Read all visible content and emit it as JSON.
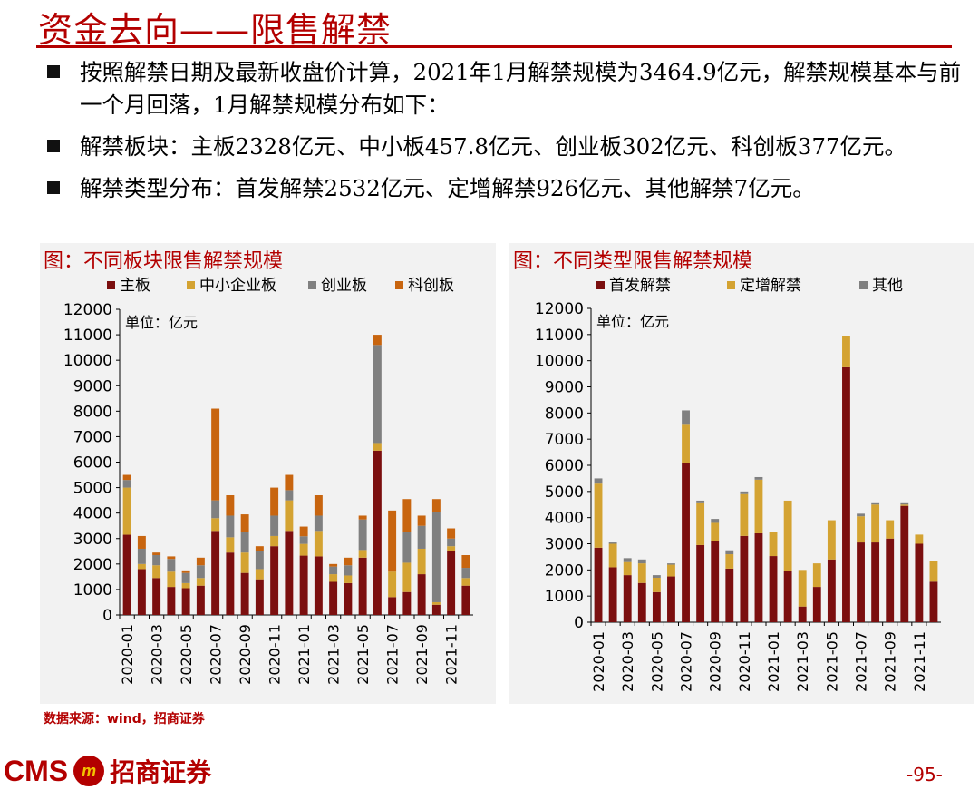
{
  "page": {
    "title": "资金去向——限售解禁",
    "bullets": [
      "按照解禁日期及最新收盘价计算，2021年1月解禁规模为3464.9亿元，解禁规模基本与前一个月回落，1月解禁规模分布如下：",
      "解禁板块：主板2328亿元、中小板457.8亿元、创业板302亿元、科创板377亿元。",
      "解禁类型分布：首发解禁2532亿元、定增解禁926亿元、其他解禁7亿元。"
    ],
    "source": "数据来源：wind，招商证券",
    "logo": {
      "text": "CMS",
      "mark": "m",
      "cn": "招商证券"
    },
    "page_number": "-95-"
  },
  "chart_data": [
    {
      "type": "bar",
      "stacked": true,
      "title": "图：不同板块限售解禁规模",
      "unit_label": "单位：亿元",
      "ylim": [
        0,
        12000
      ],
      "yticks": [
        0,
        1000,
        2000,
        3000,
        4000,
        5000,
        6000,
        7000,
        8000,
        9000,
        10000,
        11000,
        12000
      ],
      "legend_position": "top",
      "categories": [
        "2020-01",
        "2020-02",
        "2020-03",
        "2020-04",
        "2020-05",
        "2020-06",
        "2020-07",
        "2020-08",
        "2020-09",
        "2020-10",
        "2020-11",
        "2020-12",
        "2021-01",
        "2021-02",
        "2021-03",
        "2021-04",
        "2021-05",
        "2021-06",
        "2021-07",
        "2021-08",
        "2021-09",
        "2021-10",
        "2021-11",
        "2021-12"
      ],
      "tick_labels": [
        "2020-01",
        "2020-03",
        "2020-05",
        "2020-07",
        "2020-09",
        "2020-11",
        "2021-01",
        "2021-03",
        "2021-05",
        "2021-07",
        "2021-09",
        "2021-11"
      ],
      "series": [
        {
          "name": "主板",
          "color": "#7b0f0f",
          "values": [
            3150,
            1800,
            1450,
            1100,
            1050,
            1150,
            3300,
            2450,
            1650,
            1400,
            2700,
            3300,
            2330,
            2300,
            1300,
            1250,
            2250,
            6450,
            700,
            900,
            1600,
            400,
            2500,
            1150
          ]
        },
        {
          "name": "中小企业板",
          "color": "#d4a332",
          "values": [
            1850,
            200,
            500,
            600,
            200,
            300,
            500,
            600,
            800,
            400,
            400,
            1200,
            460,
            1000,
            300,
            300,
            300,
            300,
            1000,
            1150,
            1000,
            100,
            200,
            300
          ]
        },
        {
          "name": "创业板",
          "color": "#808080",
          "values": [
            300,
            600,
            400,
            500,
            400,
            500,
            700,
            850,
            800,
            700,
            800,
            400,
            300,
            600,
            300,
            400,
            1200,
            3850,
            0,
            1200,
            900,
            3550,
            300,
            400
          ]
        },
        {
          "name": "科创板",
          "color": "#c8650f",
          "values": [
            200,
            500,
            100,
            100,
            100,
            300,
            3600,
            800,
            700,
            200,
            1100,
            600,
            380,
            800,
            100,
            300,
            150,
            400,
            2400,
            1300,
            400,
            500,
            400,
            500
          ]
        }
      ]
    },
    {
      "type": "bar",
      "stacked": true,
      "title": "图：不同类型限售解禁规模",
      "unit_label": "单位：亿元",
      "ylim": [
        0,
        12000
      ],
      "yticks": [
        0,
        1000,
        2000,
        3000,
        4000,
        5000,
        6000,
        7000,
        8000,
        9000,
        10000,
        11000,
        12000
      ],
      "legend_position": "top",
      "categories": [
        "2020-01",
        "2020-02",
        "2020-03",
        "2020-04",
        "2020-05",
        "2020-06",
        "2020-07",
        "2020-08",
        "2020-09",
        "2020-10",
        "2020-11",
        "2020-12",
        "2021-01",
        "2021-02",
        "2021-03",
        "2021-04",
        "2021-05",
        "2021-06",
        "2021-07",
        "2021-08",
        "2021-09",
        "2021-10",
        "2021-11",
        "2021-12"
      ],
      "tick_labels": [
        "2020-01",
        "2020-03",
        "2020-05",
        "2020-07",
        "2020-09",
        "2020-11",
        "2021-01",
        "2021-03",
        "2021-05",
        "2021-07",
        "2021-09",
        "2021-11"
      ],
      "series": [
        {
          "name": "首发解禁",
          "color": "#7b0f0f",
          "values": [
            2850,
            2100,
            1800,
            1500,
            1150,
            1750,
            6100,
            2950,
            3100,
            2050,
            3300,
            3400,
            2530,
            1950,
            600,
            1350,
            2400,
            9750,
            3050,
            3050,
            3200,
            4450,
            3000,
            1550
          ]
        },
        {
          "name": "定增解禁",
          "color": "#d4a332",
          "values": [
            2450,
            900,
            500,
            750,
            550,
            450,
            1450,
            1600,
            700,
            550,
            1600,
            2050,
            930,
            2700,
            1400,
            900,
            1500,
            1200,
            1000,
            1450,
            700,
            50,
            350,
            800
          ]
        },
        {
          "name": "其他",
          "color": "#808080",
          "values": [
            200,
            50,
            150,
            150,
            100,
            50,
            550,
            100,
            150,
            150,
            100,
            100,
            7,
            0,
            0,
            0,
            0,
            0,
            100,
            50,
            0,
            50,
            0,
            0
          ]
        }
      ]
    }
  ]
}
